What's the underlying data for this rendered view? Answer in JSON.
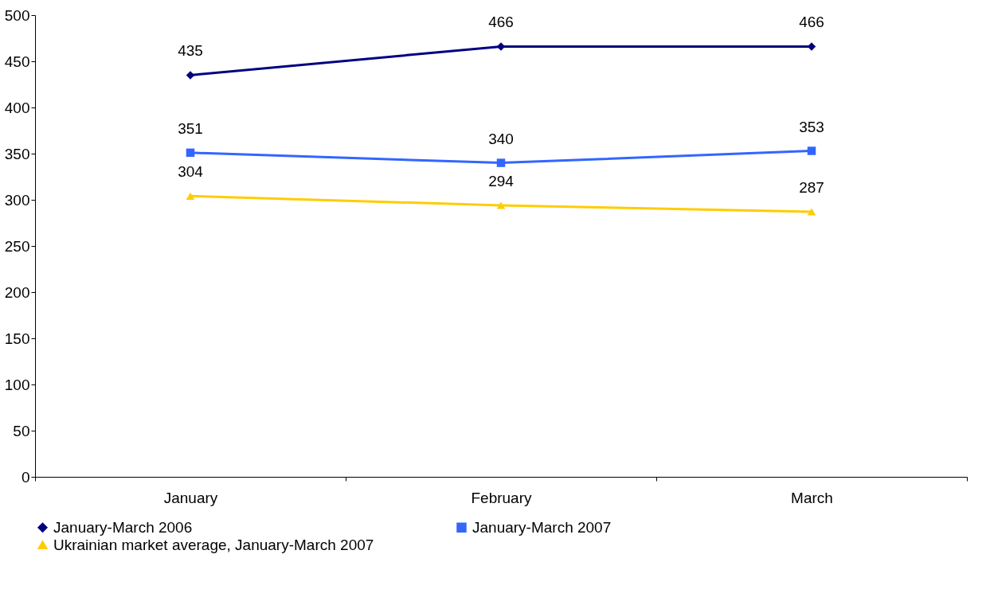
{
  "chart_data": {
    "type": "line",
    "categories": [
      "January",
      "February",
      "March"
    ],
    "series": [
      {
        "name": "January-March 2006",
        "color": "#000080",
        "marker": "diamond",
        "values": [
          435,
          466,
          466
        ]
      },
      {
        "name": "January-March 2007",
        "color": "#3366ff",
        "marker": "square",
        "values": [
          351,
          340,
          353
        ]
      },
      {
        "name": "Ukrainian market average, January-March 2007",
        "color": "#ffcc00",
        "marker": "triangle",
        "values": [
          304,
          294,
          287
        ]
      }
    ],
    "ylim": [
      0,
      500
    ],
    "yticks": [
      0,
      50,
      100,
      150,
      200,
      250,
      300,
      350,
      400,
      450,
      500
    ],
    "data_labels": true,
    "grid": false,
    "legend": "bottom",
    "line_style": "solid"
  }
}
